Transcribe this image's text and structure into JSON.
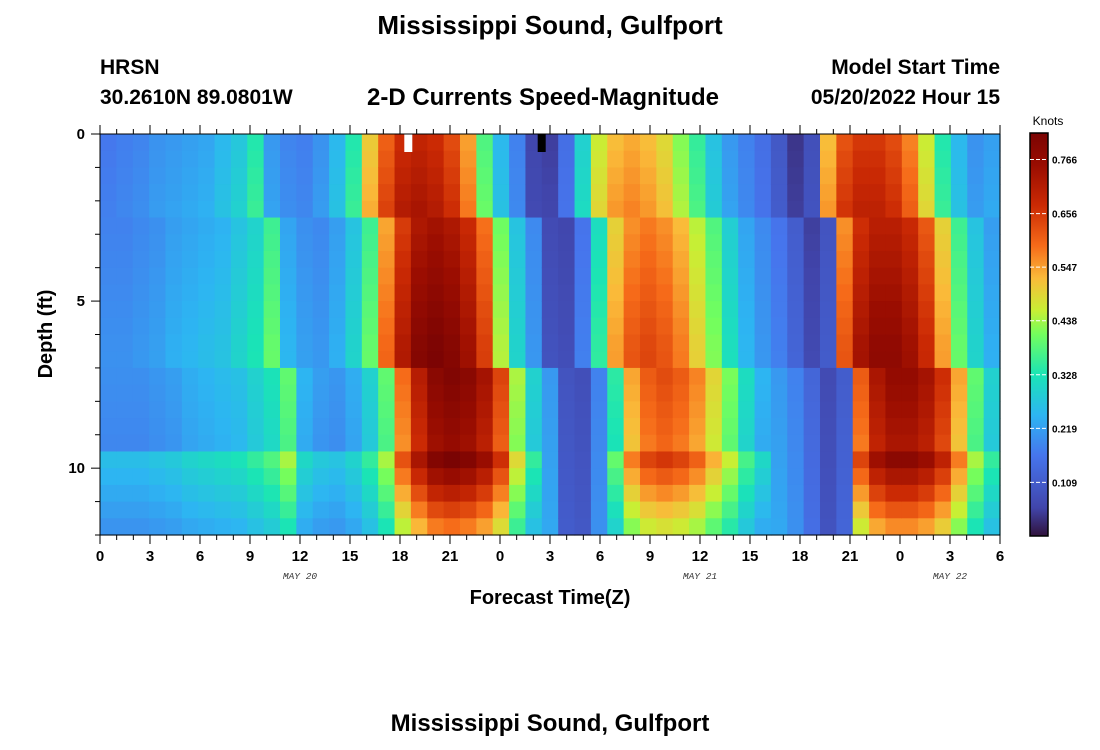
{
  "header": {
    "title": "Mississippi Sound, Gulfport",
    "station_id": "HRSN",
    "station_coords": "30.2610N  89.0801W",
    "subtitle": "2-D Currents Speed-Magnitude",
    "model_start_label": "Model Start Time",
    "model_start_value": "05/20/2022 Hour 15"
  },
  "second_panel": {
    "title": "Mississippi Sound, Gulfport"
  },
  "chart_data": {
    "type": "heatmap",
    "title": "2-D Currents Speed-Magnitude",
    "xlabel": "Forecast Time(Z)",
    "ylabel": "Depth (ft)",
    "x_hours_start": 0,
    "x_hours_end": 54,
    "x_tick_labels": [
      "0",
      "3",
      "6",
      "9",
      "12",
      "15",
      "18",
      "21",
      "0",
      "3",
      "6",
      "9",
      "12",
      "15",
      "18",
      "21",
      "0",
      "3",
      "6"
    ],
    "x_date_labels": [
      {
        "hour": 12,
        "label": "MAY 20"
      },
      {
        "hour": 36,
        "label": "MAY 21"
      },
      {
        "hour": 51,
        "label": "MAY 22"
      }
    ],
    "ylim": [
      0,
      12
    ],
    "y_tick_labels": [
      "0",
      "5",
      "10"
    ],
    "colorbar": {
      "unit": "Knots",
      "min": 0.0,
      "max": 0.82,
      "tick_values": [
        0.766,
        0.656,
        0.547,
        0.438,
        0.328,
        0.219,
        0.109
      ],
      "tick_labels": [
        "0.766",
        "0.656",
        "0.547",
        "0.438",
        "0.328",
        "0.219",
        "0.109"
      ]
    },
    "surface_speed_knots": [
      0.2,
      0.21,
      0.22,
      0.24,
      0.25,
      0.26,
      0.27,
      0.3,
      0.33,
      0.4,
      0.25,
      0.22,
      0.21,
      0.24,
      0.3,
      0.4,
      0.6,
      0.72,
      0.8,
      0.82,
      0.8,
      0.75,
      0.65,
      0.45,
      0.3,
      0.18,
      0.06,
      0.05,
      0.15,
      0.35,
      0.55,
      0.62,
      0.64,
      0.62,
      0.58,
      0.5,
      0.42,
      0.32,
      0.25,
      0.18,
      0.15,
      0.1,
      0.04,
      0.08,
      0.62,
      0.74,
      0.78,
      0.78,
      0.75,
      0.68,
      0.55,
      0.4,
      0.3,
      0.24,
      0.26
    ],
    "marker_hours": [
      {
        "hour": 18.5,
        "color": "#ffffff"
      },
      {
        "hour": 26.5,
        "color": "#000000"
      }
    ]
  }
}
